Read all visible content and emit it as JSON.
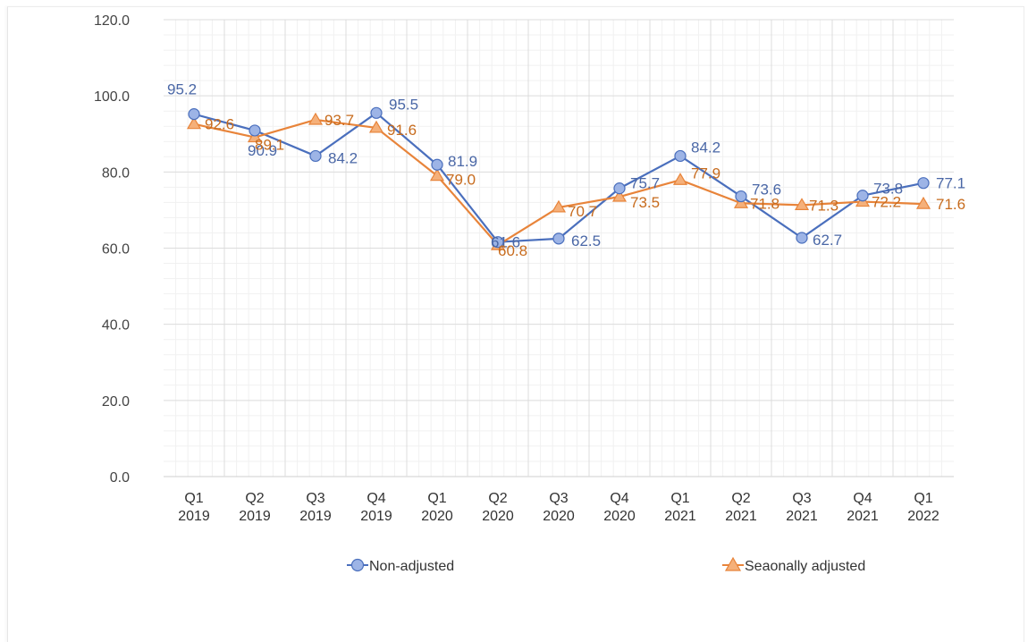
{
  "chart_data": {
    "type": "line",
    "title": "",
    "xlabel": "",
    "ylabel": "",
    "ylim": [
      0,
      120
    ],
    "yticks": [
      "0.0",
      "20.0",
      "40.0",
      "60.0",
      "80.0",
      "100.0",
      "120.0"
    ],
    "grid": true,
    "legend_position": "bottom",
    "categories": [
      [
        "Q1",
        "2019"
      ],
      [
        "Q2",
        "2019"
      ],
      [
        "Q3",
        "2019"
      ],
      [
        "Q4",
        "2019"
      ],
      [
        "Q1",
        "2020"
      ],
      [
        "Q2",
        "2020"
      ],
      [
        "Q3",
        "2020"
      ],
      [
        "Q4",
        "2020"
      ],
      [
        "Q1",
        "2021"
      ],
      [
        "Q2",
        "2021"
      ],
      [
        "Q3",
        "2021"
      ],
      [
        "Q4",
        "2021"
      ],
      [
        "Q1",
        "2022"
      ]
    ],
    "series": [
      {
        "name": "Non-adjusted",
        "marker": "circle",
        "color": "#4a6fbd",
        "fill": "#9db4e6",
        "label_color": "#4a67a6",
        "values": [
          95.2,
          90.9,
          84.2,
          95.5,
          81.9,
          61.6,
          62.5,
          75.7,
          84.2,
          73.6,
          62.7,
          73.8,
          77.1
        ]
      },
      {
        "name": "Seaonally adjusted",
        "marker": "triangle",
        "color": "#e8843a",
        "fill": "#f5b07a",
        "label_color": "#c76b1d",
        "values": [
          92.6,
          89.1,
          93.7,
          91.6,
          79.0,
          60.8,
          70.7,
          73.5,
          77.9,
          71.8,
          71.3,
          72.2,
          71.6
        ]
      }
    ]
  }
}
